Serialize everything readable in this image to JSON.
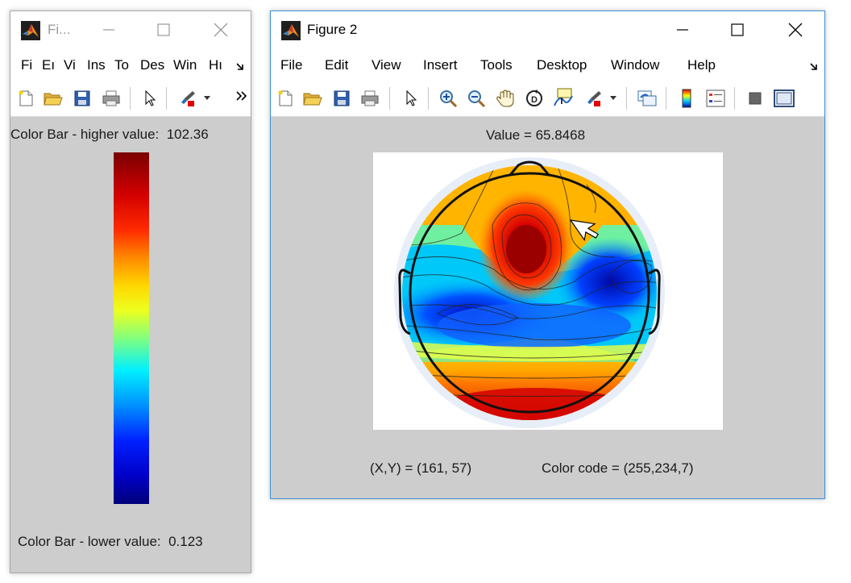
{
  "window1": {
    "title": "Fi...",
    "menu": [
      "Fi",
      "Eı",
      "Vi",
      "Ins",
      "To",
      "Des",
      "Win",
      "Hı"
    ],
    "higher_label": "Color Bar - higher value:",
    "higher_value": "102.36",
    "lower_label": "Color Bar - lower value:",
    "lower_value": "0.123"
  },
  "window2": {
    "title": "Figure 2",
    "menu": [
      "File",
      "Edit",
      "View",
      "Insert",
      "Tools",
      "Desktop",
      "Window",
      "Help"
    ],
    "value_text": "Value = 65.8468",
    "xy_text": "(X,Y) = (161, 57)",
    "color_code_text": "Color code = (255,234,7)"
  },
  "icons": {
    "app": "matlab-icon",
    "minimize": "minimize-icon",
    "maximize": "maximize-icon",
    "close": "close-icon",
    "toolbar1": [
      "new-file-icon",
      "open-folder-icon",
      "save-icon",
      "print-icon",
      "pointer-icon",
      "brush-icon",
      "dropdown-icon",
      "overflow-chevron-icon"
    ],
    "toolbar2": [
      "new-file-icon",
      "open-folder-icon",
      "save-icon",
      "print-icon",
      "pointer-icon",
      "zoom-in-icon",
      "zoom-out-icon",
      "pan-hand-icon",
      "rotate-3d-icon",
      "data-cursor-icon",
      "brush-icon",
      "dropdown-icon",
      "link-plot-icon",
      "insert-colorbar-icon",
      "insert-legend-icon",
      "hide-plot-tools-icon",
      "show-plot-tools-icon"
    ]
  },
  "colors": {
    "figure_background": "#cdcdcd",
    "active_window_border": "#3c8fd6",
    "colormap": "jet"
  }
}
